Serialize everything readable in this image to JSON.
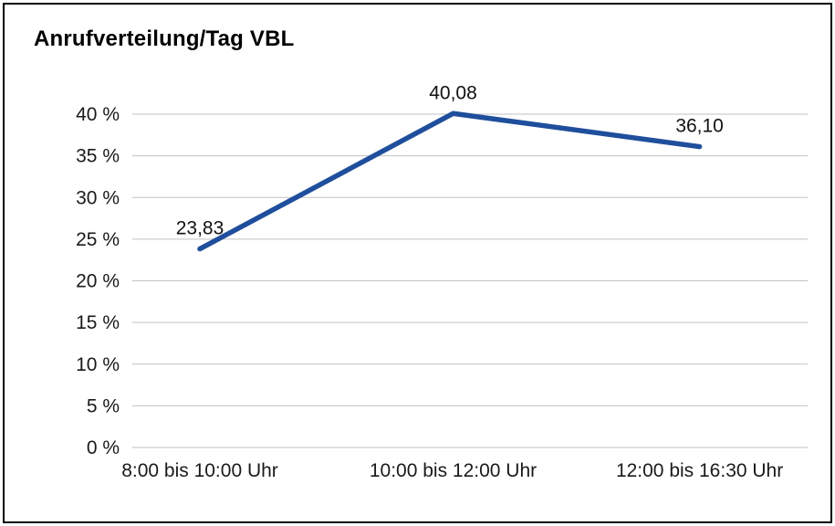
{
  "title": "Anrufverteilung/Tag VBL",
  "chart_data": {
    "type": "line",
    "title": "Anrufverteilung/Tag VBL",
    "categories": [
      "8:00 bis 10:00 Uhr",
      "10:00 bis 12:00 Uhr",
      "12:00 bis 16:30 Uhr"
    ],
    "values": [
      23.83,
      40.08,
      36.1
    ],
    "value_labels": [
      "23,83",
      "40,08",
      "36,10"
    ],
    "xlabel": "",
    "ylabel": "",
    "ylim": [
      0,
      40
    ],
    "ytick_values": [
      0,
      5,
      10,
      15,
      20,
      25,
      30,
      35,
      40
    ],
    "ytick_labels": [
      "0 %",
      "5 %",
      "10 %",
      "15 %",
      "20 %",
      "25 %",
      "30 %",
      "35 %",
      "40 %"
    ],
    "grid": true,
    "legend": "none",
    "line_color": "#1f4e9c"
  },
  "colors": {
    "grid": "#c2c2c2",
    "text": "#1a1a1a",
    "border": "#000000",
    "background": "#ffffff"
  }
}
